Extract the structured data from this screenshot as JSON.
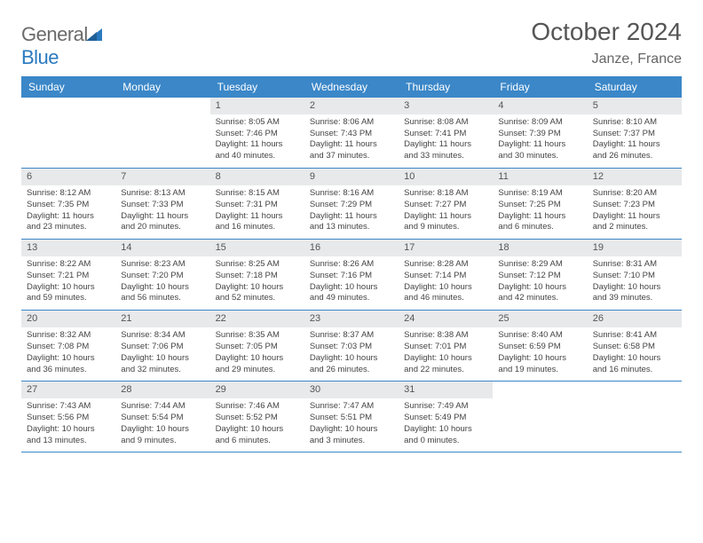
{
  "logo": {
    "text_gray": "General",
    "text_blue": "Blue"
  },
  "title": "October 2024",
  "location": "Janze, France",
  "colors": {
    "header_bg": "#3b87c8",
    "header_text": "#ffffff",
    "daynum_bg": "#e7e9eb",
    "rule": "#3b87c8",
    "body_text": "#444444",
    "logo_gray": "#6b6b6b",
    "logo_blue": "#2a7abf"
  },
  "day_names": [
    "Sunday",
    "Monday",
    "Tuesday",
    "Wednesday",
    "Thursday",
    "Friday",
    "Saturday"
  ],
  "weeks": [
    [
      null,
      null,
      {
        "n": "1",
        "sr": "Sunrise: 8:05 AM",
        "ss": "Sunset: 7:46 PM",
        "d1": "Daylight: 11 hours",
        "d2": "and 40 minutes."
      },
      {
        "n": "2",
        "sr": "Sunrise: 8:06 AM",
        "ss": "Sunset: 7:43 PM",
        "d1": "Daylight: 11 hours",
        "d2": "and 37 minutes."
      },
      {
        "n": "3",
        "sr": "Sunrise: 8:08 AM",
        "ss": "Sunset: 7:41 PM",
        "d1": "Daylight: 11 hours",
        "d2": "and 33 minutes."
      },
      {
        "n": "4",
        "sr": "Sunrise: 8:09 AM",
        "ss": "Sunset: 7:39 PM",
        "d1": "Daylight: 11 hours",
        "d2": "and 30 minutes."
      },
      {
        "n": "5",
        "sr": "Sunrise: 8:10 AM",
        "ss": "Sunset: 7:37 PM",
        "d1": "Daylight: 11 hours",
        "d2": "and 26 minutes."
      }
    ],
    [
      {
        "n": "6",
        "sr": "Sunrise: 8:12 AM",
        "ss": "Sunset: 7:35 PM",
        "d1": "Daylight: 11 hours",
        "d2": "and 23 minutes."
      },
      {
        "n": "7",
        "sr": "Sunrise: 8:13 AM",
        "ss": "Sunset: 7:33 PM",
        "d1": "Daylight: 11 hours",
        "d2": "and 20 minutes."
      },
      {
        "n": "8",
        "sr": "Sunrise: 8:15 AM",
        "ss": "Sunset: 7:31 PM",
        "d1": "Daylight: 11 hours",
        "d2": "and 16 minutes."
      },
      {
        "n": "9",
        "sr": "Sunrise: 8:16 AM",
        "ss": "Sunset: 7:29 PM",
        "d1": "Daylight: 11 hours",
        "d2": "and 13 minutes."
      },
      {
        "n": "10",
        "sr": "Sunrise: 8:18 AM",
        "ss": "Sunset: 7:27 PM",
        "d1": "Daylight: 11 hours",
        "d2": "and 9 minutes."
      },
      {
        "n": "11",
        "sr": "Sunrise: 8:19 AM",
        "ss": "Sunset: 7:25 PM",
        "d1": "Daylight: 11 hours",
        "d2": "and 6 minutes."
      },
      {
        "n": "12",
        "sr": "Sunrise: 8:20 AM",
        "ss": "Sunset: 7:23 PM",
        "d1": "Daylight: 11 hours",
        "d2": "and 2 minutes."
      }
    ],
    [
      {
        "n": "13",
        "sr": "Sunrise: 8:22 AM",
        "ss": "Sunset: 7:21 PM",
        "d1": "Daylight: 10 hours",
        "d2": "and 59 minutes."
      },
      {
        "n": "14",
        "sr": "Sunrise: 8:23 AM",
        "ss": "Sunset: 7:20 PM",
        "d1": "Daylight: 10 hours",
        "d2": "and 56 minutes."
      },
      {
        "n": "15",
        "sr": "Sunrise: 8:25 AM",
        "ss": "Sunset: 7:18 PM",
        "d1": "Daylight: 10 hours",
        "d2": "and 52 minutes."
      },
      {
        "n": "16",
        "sr": "Sunrise: 8:26 AM",
        "ss": "Sunset: 7:16 PM",
        "d1": "Daylight: 10 hours",
        "d2": "and 49 minutes."
      },
      {
        "n": "17",
        "sr": "Sunrise: 8:28 AM",
        "ss": "Sunset: 7:14 PM",
        "d1": "Daylight: 10 hours",
        "d2": "and 46 minutes."
      },
      {
        "n": "18",
        "sr": "Sunrise: 8:29 AM",
        "ss": "Sunset: 7:12 PM",
        "d1": "Daylight: 10 hours",
        "d2": "and 42 minutes."
      },
      {
        "n": "19",
        "sr": "Sunrise: 8:31 AM",
        "ss": "Sunset: 7:10 PM",
        "d1": "Daylight: 10 hours",
        "d2": "and 39 minutes."
      }
    ],
    [
      {
        "n": "20",
        "sr": "Sunrise: 8:32 AM",
        "ss": "Sunset: 7:08 PM",
        "d1": "Daylight: 10 hours",
        "d2": "and 36 minutes."
      },
      {
        "n": "21",
        "sr": "Sunrise: 8:34 AM",
        "ss": "Sunset: 7:06 PM",
        "d1": "Daylight: 10 hours",
        "d2": "and 32 minutes."
      },
      {
        "n": "22",
        "sr": "Sunrise: 8:35 AM",
        "ss": "Sunset: 7:05 PM",
        "d1": "Daylight: 10 hours",
        "d2": "and 29 minutes."
      },
      {
        "n": "23",
        "sr": "Sunrise: 8:37 AM",
        "ss": "Sunset: 7:03 PM",
        "d1": "Daylight: 10 hours",
        "d2": "and 26 minutes."
      },
      {
        "n": "24",
        "sr": "Sunrise: 8:38 AM",
        "ss": "Sunset: 7:01 PM",
        "d1": "Daylight: 10 hours",
        "d2": "and 22 minutes."
      },
      {
        "n": "25",
        "sr": "Sunrise: 8:40 AM",
        "ss": "Sunset: 6:59 PM",
        "d1": "Daylight: 10 hours",
        "d2": "and 19 minutes."
      },
      {
        "n": "26",
        "sr": "Sunrise: 8:41 AM",
        "ss": "Sunset: 6:58 PM",
        "d1": "Daylight: 10 hours",
        "d2": "and 16 minutes."
      }
    ],
    [
      {
        "n": "27",
        "sr": "Sunrise: 7:43 AM",
        "ss": "Sunset: 5:56 PM",
        "d1": "Daylight: 10 hours",
        "d2": "and 13 minutes."
      },
      {
        "n": "28",
        "sr": "Sunrise: 7:44 AM",
        "ss": "Sunset: 5:54 PM",
        "d1": "Daylight: 10 hours",
        "d2": "and 9 minutes."
      },
      {
        "n": "29",
        "sr": "Sunrise: 7:46 AM",
        "ss": "Sunset: 5:52 PM",
        "d1": "Daylight: 10 hours",
        "d2": "and 6 minutes."
      },
      {
        "n": "30",
        "sr": "Sunrise: 7:47 AM",
        "ss": "Sunset: 5:51 PM",
        "d1": "Daylight: 10 hours",
        "d2": "and 3 minutes."
      },
      {
        "n": "31",
        "sr": "Sunrise: 7:49 AM",
        "ss": "Sunset: 5:49 PM",
        "d1": "Daylight: 10 hours",
        "d2": "and 0 minutes."
      },
      null,
      null
    ]
  ]
}
